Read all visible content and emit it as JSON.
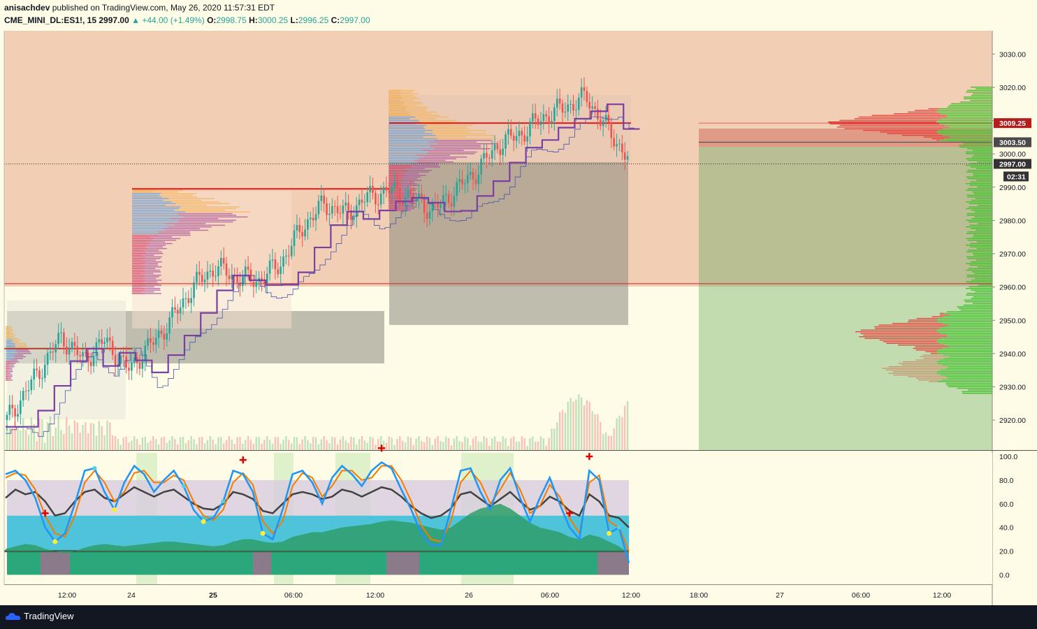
{
  "header": {
    "author": "anisachdev",
    "published_text": "published on TradingView.com, May 26, 2020 11:57:31 EDT",
    "symbol": "CME_MINI_DL:ES1!, 15",
    "last": "2997.00",
    "change": "▲ +44.00 (+1.49%)",
    "o_label": "O:",
    "o": "2998.75",
    "h_label": "H:",
    "h": "3000.25",
    "l_label": "L:",
    "l": "2996.25",
    "c_label": "C:",
    "c": "2997.00"
  },
  "footer": {
    "brand": "TradingView"
  },
  "colors": {
    "bull": "#26a69a",
    "bear": "#ef5350",
    "poc": "#e61919",
    "stoch_k": "#2196f3",
    "stoch_d": "#f57c00",
    "rsi": "#424242",
    "bg_zone": "#f2cfb4",
    "green_zone": "#c2dcb0"
  },
  "chart_data": [
    {
      "type": "candlestick",
      "panel": "price",
      "symbol": "CME_MINI_DL:ES1!",
      "interval": "15",
      "x_tick_labels": [
        "12:00",
        "24",
        "25",
        "06:00",
        "12:00",
        "26",
        "06:00",
        "12:00",
        "18:00",
        "27",
        "06:00",
        "12:00"
      ],
      "y_tick_labels": [
        "3030.00",
        "3020.00",
        "3010.00",
        "3000.00",
        "2990.00",
        "2980.00",
        "2970.00",
        "2960.00",
        "2950.00",
        "2940.00",
        "2930.00",
        "2920.00"
      ],
      "ylim": [
        2911,
        3037
      ],
      "price_labels": [
        {
          "value": 3009.25,
          "text": "3009.25",
          "color": "#b71c1c"
        },
        {
          "value": 3003.5,
          "text": "3003.50",
          "color": "#4a4a4a"
        },
        {
          "value": 2997.0,
          "text": "2997.00",
          "color": "#333333"
        }
      ],
      "countdown": "02:31",
      "key_levels": [
        {
          "name": "poc_upper",
          "value": 3009.25
        },
        {
          "name": "poc_mid",
          "value": 2989.5
        },
        {
          "name": "poc_lower",
          "value": 2941.5
        },
        {
          "name": "zone_boundary",
          "value": 2961.0
        },
        {
          "name": "last_price",
          "value": 2997.0
        }
      ],
      "path_points": [
        [
          0,
          2920
        ],
        [
          6,
          2935
        ],
        [
          10,
          2945
        ],
        [
          14,
          2938
        ],
        [
          18,
          2944
        ],
        [
          22,
          2935
        ],
        [
          26,
          2942
        ],
        [
          30,
          2950
        ],
        [
          34,
          2960
        ],
        [
          38,
          2966
        ],
        [
          42,
          2963
        ],
        [
          46,
          2962
        ],
        [
          50,
          2967
        ],
        [
          54,
          2978
        ],
        [
          58,
          2985
        ],
        [
          62,
          2982
        ],
        [
          66,
          2987
        ],
        [
          70,
          2989
        ],
        [
          74,
          2987
        ],
        [
          78,
          2983
        ],
        [
          82,
          2989
        ],
        [
          86,
          2995
        ],
        [
          90,
          3003
        ],
        [
          94,
          3006
        ],
        [
          98,
          3011
        ],
        [
          102,
          3014
        ],
        [
          106,
          3017
        ],
        [
          110,
          3007
        ],
        [
          114,
          2998
        ]
      ]
    },
    {
      "type": "line",
      "panel": "oscillator",
      "y_tick_labels": [
        "100.0",
        "80.0",
        "60.0",
        "40.0",
        "20.0",
        "0.0"
      ],
      "ylim": [
        -8,
        103
      ],
      "bands": [
        20,
        50,
        80
      ],
      "series": [
        {
          "name": "Stoch %K",
          "values": [
            85,
            88,
            80,
            65,
            40,
            28,
            35,
            60,
            88,
            90,
            70,
            55,
            78,
            92,
            85,
            70,
            80,
            88,
            75,
            55,
            45,
            48,
            62,
            88,
            85,
            70,
            35,
            30,
            55,
            85,
            88,
            78,
            60,
            82,
            92,
            85,
            75,
            88,
            95,
            90,
            72,
            55,
            35,
            25,
            25,
            55,
            88,
            90,
            70,
            55,
            80,
            90,
            65,
            45,
            65,
            82,
            60,
            40,
            30,
            88,
            80,
            35,
            40,
            10
          ]
        },
        {
          "name": "Stoch %D",
          "values": [
            82,
            86,
            84,
            72,
            50,
            35,
            32,
            50,
            78,
            88,
            78,
            62,
            70,
            86,
            88,
            78,
            78,
            84,
            80,
            62,
            50,
            46,
            55,
            78,
            86,
            76,
            45,
            35,
            45,
            75,
            86,
            82,
            66,
            75,
            88,
            88,
            80,
            82,
            92,
            92,
            80,
            62,
            42,
            30,
            28,
            45,
            78,
            88,
            78,
            60,
            72,
            86,
            72,
            52,
            58,
            76,
            66,
            48,
            35,
            78,
            84,
            45,
            40,
            20
          ]
        },
        {
          "name": "RSI",
          "values": [
            65,
            72,
            68,
            70,
            62,
            50,
            52,
            62,
            70,
            72,
            65,
            62,
            68,
            74,
            70,
            66,
            70,
            72,
            66,
            60,
            56,
            55,
            60,
            70,
            68,
            64,
            54,
            52,
            60,
            68,
            70,
            68,
            64,
            66,
            72,
            70,
            66,
            70,
            74,
            72,
            66,
            58,
            52,
            48,
            50,
            56,
            68,
            70,
            64,
            58,
            64,
            70,
            62,
            55,
            58,
            66,
            62,
            54,
            50,
            68,
            62,
            50,
            48,
            40
          ]
        },
        {
          "name": "Area",
          "values": [
            22,
            24,
            26,
            25,
            22,
            20,
            18,
            20,
            23,
            25,
            26,
            25,
            24,
            25,
            26,
            27,
            28,
            28,
            27,
            26,
            25,
            24,
            25,
            28,
            30,
            30,
            28,
            27,
            28,
            32,
            34,
            36,
            36,
            38,
            40,
            41,
            42,
            43,
            45,
            46,
            45,
            44,
            42,
            40,
            38,
            40,
            46,
            52,
            56,
            58,
            60,
            56,
            50,
            44,
            40,
            38,
            36,
            32,
            30,
            34,
            32,
            28,
            24,
            18
          ]
        }
      ]
    }
  ]
}
